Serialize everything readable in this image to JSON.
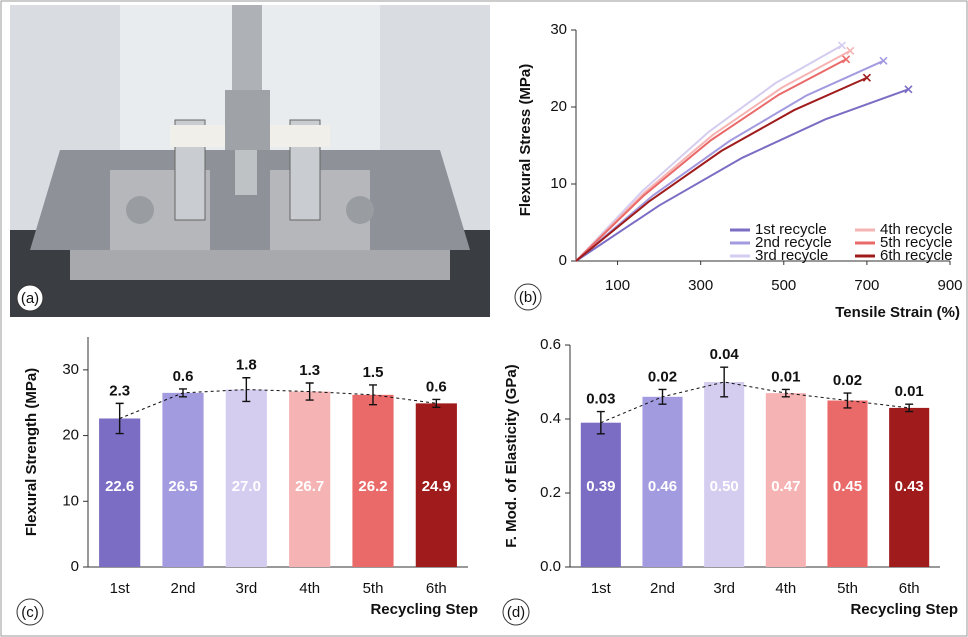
{
  "chart_data": [
    {
      "type": "image",
      "panel_label": "(a)"
    },
    {
      "type": "line",
      "panel_label": "(b)",
      "x_label": "Tensile Strain (%)",
      "y_label": "Flexural Stress (MPa)",
      "xlim": [
        0,
        900
      ],
      "xticks": [
        100,
        300,
        500,
        700,
        900
      ],
      "ylim": [
        0,
        30
      ],
      "yticks": [
        0,
        10,
        20,
        30
      ],
      "series": [
        {
          "name": "1st recycle",
          "color": "#7b6cc4",
          "x": [
            0,
            200,
            400,
            600,
            800
          ],
          "values": [
            0,
            7.2,
            13.4,
            18.4,
            22.3
          ]
        },
        {
          "name": "2nd recycle",
          "color": "#a39be0",
          "x": [
            0,
            185,
            370,
            555,
            740
          ],
          "values": [
            0,
            8.5,
            15.6,
            21.5,
            26
          ]
        },
        {
          "name": "3rd recycle",
          "color": "#d5cdf0",
          "x": [
            0,
            160,
            320,
            480,
            640
          ],
          "values": [
            0,
            9.1,
            16.8,
            23.1,
            28
          ]
        },
        {
          "name": "4th recycle",
          "color": "#f6b3b3",
          "x": [
            0,
            165,
            330,
            495,
            660
          ],
          "values": [
            0,
            8.9,
            16.4,
            22.5,
            27.3
          ]
        },
        {
          "name": "5th recycle",
          "color": "#ea6a6a",
          "x": [
            0,
            163,
            325,
            488,
            650
          ],
          "values": [
            0,
            8.5,
            15.7,
            21.6,
            26.2
          ]
        },
        {
          "name": "6th recycle",
          "color": "#a01c1c",
          "x": [
            0,
            175,
            350,
            525,
            700
          ],
          "values": [
            0,
            7.7,
            14.3,
            19.6,
            23.8
          ]
        }
      ]
    },
    {
      "type": "bar",
      "panel_label": "(c)",
      "x_label": "Recycling Step",
      "y_label": "Flexural Strength (MPa)",
      "categories": [
        "1st",
        "2nd",
        "3rd",
        "4th",
        "5th",
        "6th"
      ],
      "values": [
        22.6,
        26.5,
        27.0,
        26.7,
        26.2,
        24.9
      ],
      "value_labels": [
        "22.6",
        "26.5",
        "27.0",
        "26.7",
        "26.2",
        "24.9"
      ],
      "errors": [
        2.3,
        0.6,
        1.8,
        1.3,
        1.5,
        0.6
      ],
      "colors": [
        "#7b6cc4",
        "#a39be0",
        "#d5cdf0",
        "#f6b3b3",
        "#ea6a6a",
        "#a01c1c"
      ],
      "ylim": [
        0,
        35
      ],
      "yticks": [
        0,
        10,
        20,
        30
      ]
    },
    {
      "type": "bar",
      "panel_label": "(d)",
      "x_label": "Recycling Step",
      "y_label": "F. Mod. of Elasticity (GPa)",
      "categories": [
        "1st",
        "2nd",
        "3rd",
        "4th",
        "5th",
        "6th"
      ],
      "values": [
        0.39,
        0.46,
        0.5,
        0.47,
        0.45,
        0.43
      ],
      "value_labels": [
        "0.39",
        "0.46",
        "0.50",
        "0.47",
        "0.45",
        "0.43"
      ],
      "errors": [
        0.03,
        0.02,
        0.04,
        0.01,
        0.02,
        0.01
      ],
      "colors": [
        "#7b6cc4",
        "#a39be0",
        "#d5cdf0",
        "#f6b3b3",
        "#ea6a6a",
        "#a01c1c"
      ],
      "ylim": [
        0,
        0.6
      ],
      "yticks": [
        {
          "value": 0,
          "label": "0.0"
        },
        0.2,
        0.4,
        0.6
      ]
    }
  ]
}
